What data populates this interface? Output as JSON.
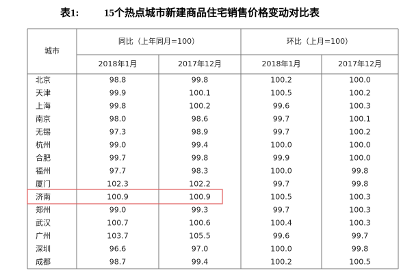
{
  "title": {
    "label": "表1:",
    "text": "15个热点城市新建商品住宅销售价格变动对比表"
  },
  "table": {
    "header": {
      "city": "城市",
      "groups": [
        "同比（上年同月=100）",
        "环比（上月=100）"
      ],
      "months": [
        "2018年1月",
        "2017年12月",
        "2018年1月",
        "2017年12月"
      ]
    },
    "rows": [
      [
        "北京",
        "98.8",
        "99.8",
        "100.2",
        "100.0"
      ],
      [
        "天津",
        "99.9",
        "100.1",
        "100.5",
        "100.2"
      ],
      [
        "上海",
        "99.8",
        "100.2",
        "99.6",
        "100.3"
      ],
      [
        "南京",
        "98.0",
        "98.6",
        "99.7",
        "100.1"
      ],
      [
        "无锡",
        "97.3",
        "98.9",
        "99.7",
        "100.2"
      ],
      [
        "杭州",
        "99.0",
        "99.4",
        "100.0",
        "100.0"
      ],
      [
        "合肥",
        "99.7",
        "99.8",
        "99.9",
        "100.0"
      ],
      [
        "福州",
        "97.7",
        "98.3",
        "100.0",
        "99.8"
      ],
      [
        "厦门",
        "102.3",
        "102.2",
        "99.7",
        "99.8"
      ],
      [
        "济南",
        "100.9",
        "100.9",
        "100.5",
        "100.3"
      ],
      [
        "郑州",
        "99.0",
        "99.3",
        "99.7",
        "100.3"
      ],
      [
        "武汉",
        "100.7",
        "100.6",
        "100.4",
        "100.3"
      ],
      [
        "广州",
        "103.7",
        "105.5",
        "99.6",
        "99.7"
      ],
      [
        "深圳",
        "96.6",
        "97.0",
        "100.0",
        "99.8"
      ],
      [
        "成都",
        "98.7",
        "99.4",
        "100.2",
        "100.5"
      ]
    ]
  }
}
